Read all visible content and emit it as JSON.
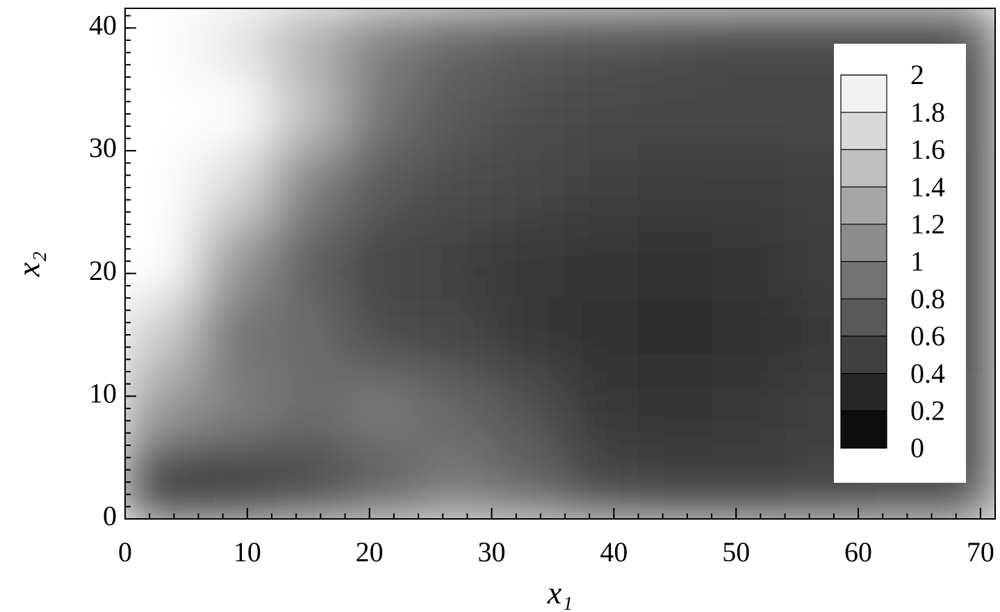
{
  "chart_data": {
    "type": "heatmap",
    "xlabel": "x₁",
    "ylabel": "x₂",
    "x": [
      0,
      6,
      12,
      18,
      24,
      30,
      36,
      42,
      48,
      54,
      60,
      66,
      71.2
    ],
    "y": [
      0,
      6,
      12,
      18,
      24,
      30,
      36,
      41.6
    ],
    "z": [
      [
        0.4,
        0.45,
        0.55,
        0.75,
        0.95,
        0.8,
        0.55,
        0.5,
        0.5,
        0.52,
        0.55,
        0.58
      ],
      [
        1.2,
        1.0,
        0.85,
        0.95,
        0.8,
        0.65,
        0.45,
        0.42,
        0.45,
        0.5,
        0.55,
        0.58
      ],
      [
        1.6,
        0.9,
        0.85,
        0.6,
        0.55,
        0.45,
        0.38,
        0.35,
        0.38,
        0.45,
        0.52,
        0.56
      ],
      [
        2,
        1.2,
        0.75,
        0.55,
        0.5,
        0.45,
        0.42,
        0.4,
        0.42,
        0.48,
        0.52,
        0.56
      ],
      [
        2,
        1.7,
        1.0,
        0.7,
        0.6,
        0.55,
        0.5,
        0.48,
        0.48,
        0.5,
        0.53,
        0.56
      ],
      [
        2,
        2,
        1.5,
        0.9,
        0.7,
        0.62,
        0.58,
        0.55,
        0.55,
        0.55,
        0.56,
        0.57
      ],
      [
        2,
        1.8,
        1.4,
        1.0,
        0.8,
        0.7,
        0.65,
        0.6,
        0.58,
        0.58,
        0.58,
        0.58
      ]
    ],
    "xlim": [
      0,
      71.2
    ],
    "ylim": [
      0,
      41.6
    ],
    "xticks": [
      0,
      10,
      20,
      30,
      40,
      50,
      60,
      70
    ],
    "yticks": [
      0,
      10,
      20,
      30,
      40
    ],
    "xminor": 5,
    "yminor": 10,
    "zlim": [
      0,
      2
    ],
    "zticks": [
      0,
      0.2,
      0.4,
      0.6,
      0.8,
      1,
      1.2,
      1.4,
      1.6,
      1.8,
      2
    ]
  }
}
